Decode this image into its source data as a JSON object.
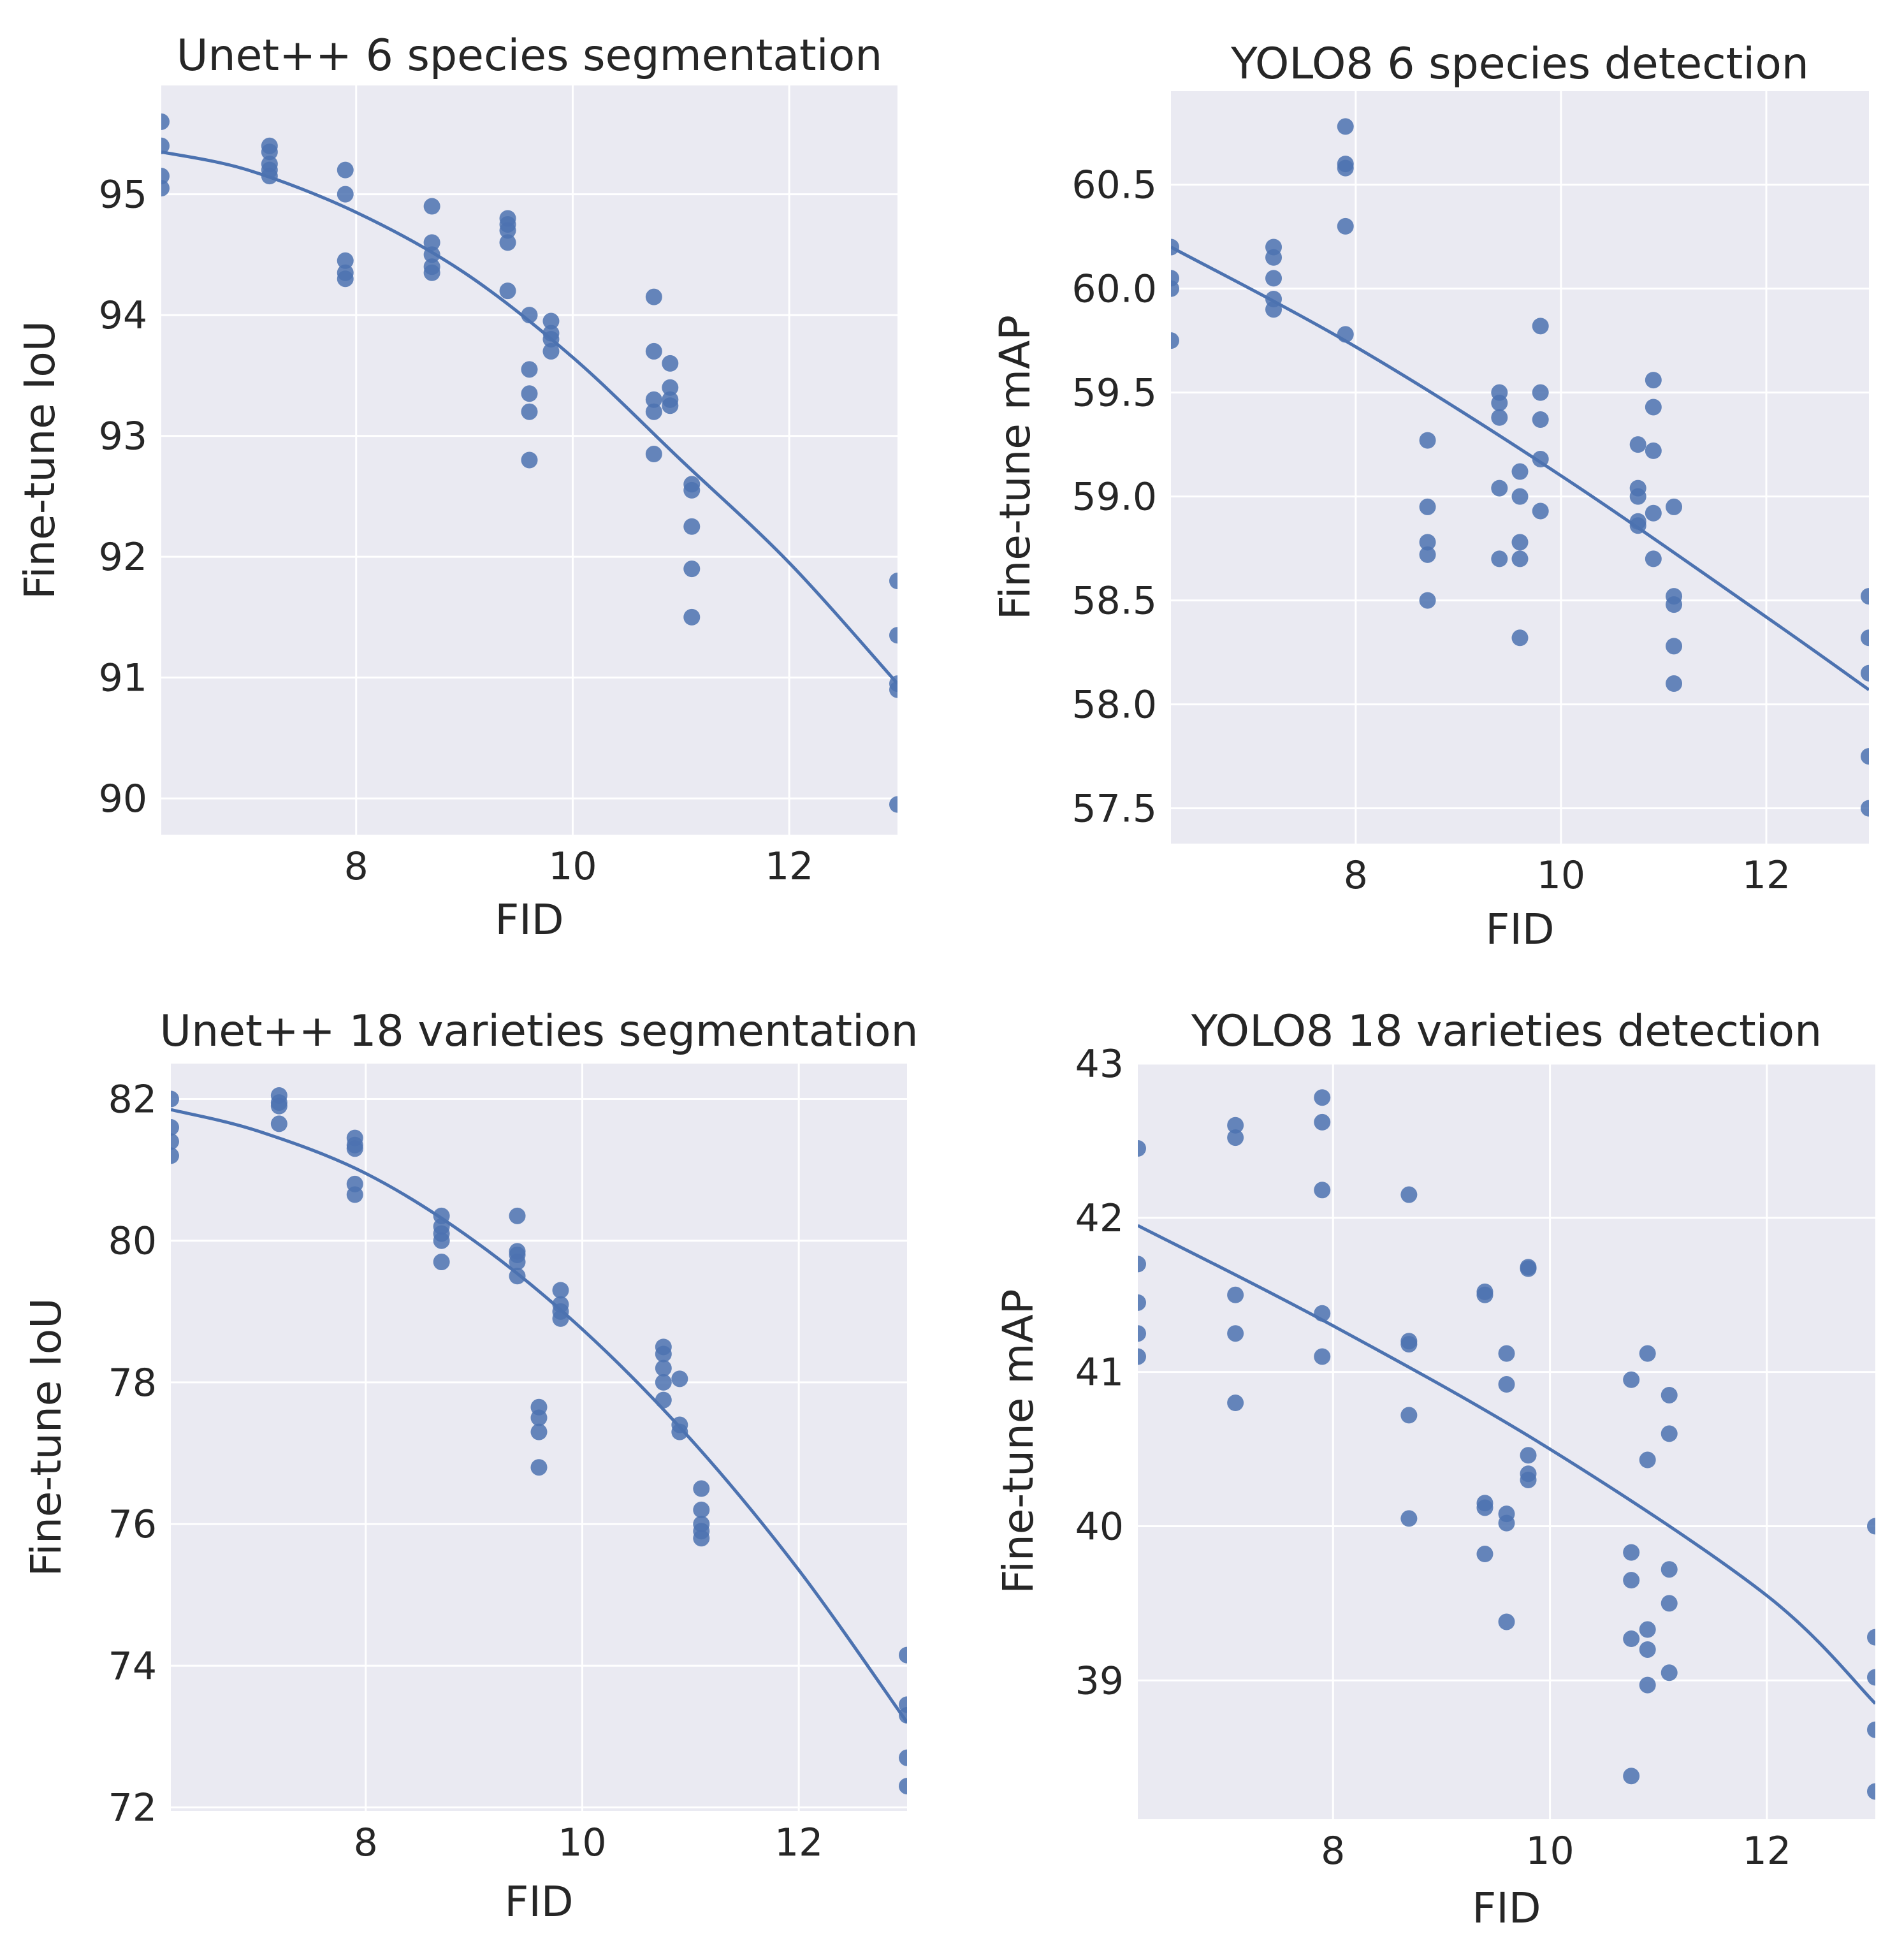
{
  "colors": {
    "panel_background": "#eaeaf2",
    "grid": "#ffffff",
    "series": "#4c72b0",
    "text": "#262626"
  },
  "chart_data": [
    {
      "id": "unet-species",
      "type": "scatter",
      "title": "Unet++ 6 species segmentation",
      "xlabel": "FID",
      "ylabel": "Fine-tune IoU",
      "xlim": [
        6.2,
        13.0
      ],
      "ylim": [
        89.7,
        95.9
      ],
      "xticks": [
        8,
        10,
        12
      ],
      "yticks": [
        90,
        91,
        92,
        93,
        94,
        95
      ],
      "grid": true,
      "points": [
        [
          6.2,
          95.6
        ],
        [
          6.2,
          95.4
        ],
        [
          6.2,
          95.15
        ],
        [
          6.2,
          95.05
        ],
        [
          7.2,
          95.4
        ],
        [
          7.2,
          95.35
        ],
        [
          7.2,
          95.25
        ],
        [
          7.2,
          95.2
        ],
        [
          7.2,
          95.15
        ],
        [
          7.9,
          95.2
        ],
        [
          7.9,
          95.0
        ],
        [
          7.9,
          94.45
        ],
        [
          7.9,
          94.35
        ],
        [
          7.9,
          94.3
        ],
        [
          8.7,
          94.9
        ],
        [
          8.7,
          94.6
        ],
        [
          8.7,
          94.5
        ],
        [
          8.7,
          94.4
        ],
        [
          8.7,
          94.35
        ],
        [
          9.4,
          94.8
        ],
        [
          9.4,
          94.75
        ],
        [
          9.4,
          94.7
        ],
        [
          9.4,
          94.6
        ],
        [
          9.4,
          94.2
        ],
        [
          9.6,
          94.0
        ],
        [
          9.6,
          93.55
        ],
        [
          9.6,
          93.35
        ],
        [
          9.6,
          93.2
        ],
        [
          9.6,
          92.8
        ],
        [
          9.8,
          93.95
        ],
        [
          9.8,
          93.85
        ],
        [
          9.8,
          93.8
        ],
        [
          9.8,
          93.7
        ],
        [
          10.75,
          94.15
        ],
        [
          10.75,
          93.7
        ],
        [
          10.75,
          93.3
        ],
        [
          10.75,
          93.2
        ],
        [
          10.75,
          92.85
        ],
        [
          10.9,
          93.6
        ],
        [
          10.9,
          93.4
        ],
        [
          10.9,
          93.3
        ],
        [
          10.9,
          93.25
        ],
        [
          11.1,
          92.6
        ],
        [
          11.1,
          92.55
        ],
        [
          11.1,
          92.25
        ],
        [
          11.1,
          91.9
        ],
        [
          11.1,
          91.5
        ],
        [
          13.0,
          91.8
        ],
        [
          13.0,
          91.35
        ],
        [
          13.0,
          90.95
        ],
        [
          13.0,
          90.9
        ],
        [
          13.0,
          89.95
        ]
      ],
      "fit": {
        "x": [
          6.2,
          7,
          8,
          9,
          10,
          11,
          12,
          13
        ],
        "y": [
          95.35,
          95.2,
          94.85,
          94.35,
          93.65,
          92.8,
          91.95,
          90.95
        ]
      }
    },
    {
      "id": "yolo-species",
      "type": "scatter",
      "title": "YOLO8 6 species detection",
      "xlabel": "FID",
      "ylabel": "Fine-tune mAP",
      "xlim": [
        6.2,
        13.0
      ],
      "ylim": [
        57.33,
        60.95
      ],
      "xticks": [
        8,
        10,
        12
      ],
      "yticks": [
        57.5,
        58.0,
        58.5,
        59.0,
        59.5,
        60.0,
        60.5
      ],
      "yticks_text": [
        "57.5",
        "58.0",
        "58.5",
        "59.0",
        "59.5",
        "60.0",
        "60.5"
      ],
      "grid": true,
      "points": [
        [
          6.2,
          60.2
        ],
        [
          6.2,
          60.05
        ],
        [
          6.2,
          60.0
        ],
        [
          6.2,
          59.75
        ],
        [
          7.2,
          60.2
        ],
        [
          7.2,
          60.15
        ],
        [
          7.2,
          60.05
        ],
        [
          7.2,
          59.95
        ],
        [
          7.2,
          59.9
        ],
        [
          7.9,
          60.78
        ],
        [
          7.9,
          60.6
        ],
        [
          7.9,
          60.58
        ],
        [
          7.9,
          60.3
        ],
        [
          7.9,
          59.78
        ],
        [
          8.7,
          59.27
        ],
        [
          8.7,
          58.95
        ],
        [
          8.7,
          58.78
        ],
        [
          8.7,
          58.72
        ],
        [
          8.7,
          58.5
        ],
        [
          9.4,
          59.5
        ],
        [
          9.4,
          59.45
        ],
        [
          9.4,
          59.38
        ],
        [
          9.4,
          59.04
        ],
        [
          9.4,
          58.7
        ],
        [
          9.6,
          59.12
        ],
        [
          9.6,
          59.0
        ],
        [
          9.6,
          58.78
        ],
        [
          9.6,
          58.7
        ],
        [
          9.6,
          58.32
        ],
        [
          9.8,
          59.82
        ],
        [
          9.8,
          59.5
        ],
        [
          9.8,
          59.37
        ],
        [
          9.8,
          59.18
        ],
        [
          9.8,
          58.93
        ],
        [
          10.75,
          59.25
        ],
        [
          10.75,
          59.04
        ],
        [
          10.75,
          59.0
        ],
        [
          10.75,
          58.88
        ],
        [
          10.75,
          58.86
        ],
        [
          10.9,
          59.56
        ],
        [
          10.9,
          59.43
        ],
        [
          10.9,
          59.22
        ],
        [
          10.9,
          58.92
        ],
        [
          10.9,
          58.7
        ],
        [
          11.1,
          58.95
        ],
        [
          11.1,
          58.52
        ],
        [
          11.1,
          58.48
        ],
        [
          11.1,
          58.28
        ],
        [
          11.1,
          58.1
        ],
        [
          13.0,
          58.52
        ],
        [
          13.0,
          58.32
        ],
        [
          13.0,
          58.15
        ],
        [
          13.0,
          57.75
        ],
        [
          13.0,
          57.5
        ]
      ],
      "fit": {
        "x": [
          6.2,
          8,
          10,
          12,
          13
        ],
        "y": [
          60.2,
          59.72,
          59.1,
          58.42,
          58.07
        ]
      }
    },
    {
      "id": "unet-varieties",
      "type": "scatter",
      "title": "Unet++ 18 varieties segmentation",
      "xlabel": "FID",
      "ylabel": "Fine-tune IoU",
      "xlim": [
        6.2,
        13.0
      ],
      "ylim": [
        71.95,
        82.5
      ],
      "xticks": [
        8,
        10,
        12
      ],
      "yticks": [
        72,
        74,
        76,
        78,
        80,
        82
      ],
      "grid": true,
      "points": [
        [
          6.2,
          82.0
        ],
        [
          6.2,
          81.6
        ],
        [
          6.2,
          81.4
        ],
        [
          6.2,
          81.2
        ],
        [
          7.2,
          82.05
        ],
        [
          7.2,
          81.95
        ],
        [
          7.2,
          81.9
        ],
        [
          7.2,
          81.65
        ],
        [
          7.9,
          81.45
        ],
        [
          7.9,
          81.35
        ],
        [
          7.9,
          81.3
        ],
        [
          7.9,
          80.8
        ],
        [
          7.9,
          80.65
        ],
        [
          8.7,
          80.35
        ],
        [
          8.7,
          80.2
        ],
        [
          8.7,
          80.1
        ],
        [
          8.7,
          80.0
        ],
        [
          8.7,
          79.7
        ],
        [
          9.4,
          80.35
        ],
        [
          9.4,
          79.85
        ],
        [
          9.4,
          79.8
        ],
        [
          9.4,
          79.7
        ],
        [
          9.4,
          79.5
        ],
        [
          9.6,
          77.65
        ],
        [
          9.6,
          77.5
        ],
        [
          9.6,
          77.3
        ],
        [
          9.6,
          76.8
        ],
        [
          9.8,
          79.3
        ],
        [
          9.8,
          79.1
        ],
        [
          9.8,
          79.0
        ],
        [
          9.8,
          78.9
        ],
        [
          10.75,
          78.5
        ],
        [
          10.75,
          78.4
        ],
        [
          10.75,
          78.2
        ],
        [
          10.75,
          78.0
        ],
        [
          10.75,
          77.75
        ],
        [
          10.9,
          78.05
        ],
        [
          10.9,
          77.4
        ],
        [
          10.9,
          77.3
        ],
        [
          11.1,
          76.5
        ],
        [
          11.1,
          76.2
        ],
        [
          11.1,
          76.0
        ],
        [
          11.1,
          75.9
        ],
        [
          11.1,
          75.8
        ],
        [
          13.0,
          74.15
        ],
        [
          13.0,
          73.45
        ],
        [
          13.0,
          73.3
        ],
        [
          13.0,
          72.7
        ],
        [
          13.0,
          72.3
        ]
      ],
      "fit": {
        "x": [
          6.2,
          7,
          8,
          9,
          10,
          11,
          12,
          13
        ],
        "y": [
          81.85,
          81.55,
          80.95,
          80.0,
          78.75,
          77.2,
          75.35,
          73.2
        ]
      }
    },
    {
      "id": "yolo-varieties",
      "type": "scatter",
      "title": "YOLO8 18 varieties detection",
      "xlabel": "FID",
      "ylabel": "Fine-tune mAP",
      "xlim": [
        6.2,
        13.0
      ],
      "ylim": [
        38.1,
        43.0
      ],
      "xticks": [
        8,
        10,
        12
      ],
      "yticks": [
        39,
        40,
        41,
        42,
        43
      ],
      "grid": true,
      "points": [
        [
          6.2,
          42.45
        ],
        [
          6.2,
          41.7
        ],
        [
          6.2,
          41.45
        ],
        [
          6.2,
          41.25
        ],
        [
          6.2,
          41.1
        ],
        [
          7.1,
          42.6
        ],
        [
          7.1,
          42.52
        ],
        [
          7.1,
          41.5
        ],
        [
          7.1,
          41.25
        ],
        [
          7.1,
          40.8
        ],
        [
          7.9,
          42.78
        ],
        [
          7.9,
          42.62
        ],
        [
          7.9,
          42.18
        ],
        [
          7.9,
          41.38
        ],
        [
          7.9,
          41.1
        ],
        [
          8.7,
          42.15
        ],
        [
          8.7,
          41.2
        ],
        [
          8.7,
          41.18
        ],
        [
          8.7,
          40.72
        ],
        [
          8.7,
          40.05
        ],
        [
          9.4,
          41.52
        ],
        [
          9.4,
          41.5
        ],
        [
          9.4,
          40.15
        ],
        [
          9.4,
          40.12
        ],
        [
          9.4,
          39.82
        ],
        [
          9.6,
          41.12
        ],
        [
          9.6,
          40.92
        ],
        [
          9.6,
          40.08
        ],
        [
          9.6,
          40.02
        ],
        [
          9.6,
          39.38
        ],
        [
          9.8,
          41.68
        ],
        [
          9.8,
          41.67
        ],
        [
          9.8,
          40.46
        ],
        [
          9.8,
          40.34
        ],
        [
          9.8,
          40.3
        ],
        [
          10.75,
          40.95
        ],
        [
          10.75,
          39.83
        ],
        [
          10.75,
          39.65
        ],
        [
          10.75,
          39.27
        ],
        [
          10.75,
          38.38
        ],
        [
          10.9,
          41.12
        ],
        [
          10.9,
          40.43
        ],
        [
          10.9,
          39.33
        ],
        [
          10.9,
          39.2
        ],
        [
          10.9,
          38.97
        ],
        [
          11.1,
          40.85
        ],
        [
          11.1,
          40.6
        ],
        [
          11.1,
          39.72
        ],
        [
          11.1,
          39.5
        ],
        [
          11.1,
          39.05
        ],
        [
          13.0,
          40.0
        ],
        [
          13.0,
          39.28
        ],
        [
          13.0,
          39.02
        ],
        [
          13.0,
          38.68
        ],
        [
          13.0,
          38.28
        ]
      ],
      "fit": {
        "x": [
          6.2,
          8,
          10,
          12,
          13
        ],
        "y": [
          41.95,
          41.3,
          40.5,
          39.55,
          38.85
        ]
      }
    }
  ]
}
